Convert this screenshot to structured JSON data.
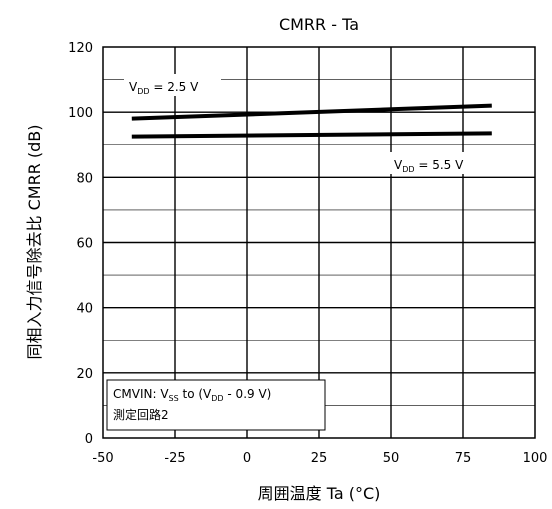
{
  "chart_data": {
    "type": "line",
    "title": "CMRR - Ta",
    "xlabel": "周囲温度  Ta (°C)",
    "ylabel": "同相入力信号除去比 CMRR (dB)",
    "xlim": [
      -50,
      100
    ],
    "ylim": [
      0,
      120
    ],
    "xticks": [
      -50,
      -25,
      0,
      25,
      50,
      75,
      100
    ],
    "yticks": [
      0,
      20,
      40,
      60,
      80,
      100,
      120
    ],
    "grid": true,
    "series": [
      {
        "name": "VDD = 2.5 V",
        "x": [
          -40,
          85
        ],
        "y": [
          98,
          102
        ]
      },
      {
        "name": "VDD = 5.5 V",
        "x": [
          -40,
          85
        ],
        "y": [
          92.5,
          93.5
        ]
      }
    ],
    "annotations": [
      {
        "text": "CMVIN: VSS to (VDD - 0.9 V)"
      },
      {
        "text": "測定回路2"
      }
    ]
  }
}
